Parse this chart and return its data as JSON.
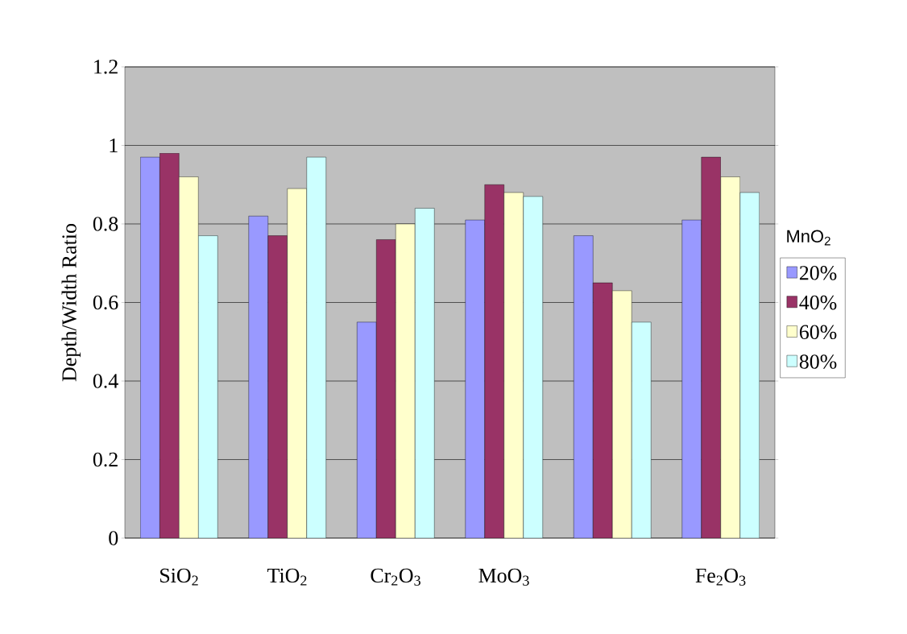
{
  "chart_data": {
    "type": "bar",
    "ylabel": "Depth/Width Ratio",
    "legend_title": "MnO$_{2}$",
    "legend": "right",
    "grid": "y",
    "categories": [
      "SiO$_{2}$",
      "TiO$_{2}$",
      "Cr$_{2}$O$_{3}$",
      "MoO$_{3}$",
      null,
      "Fe$_{2}$O$_{3}$"
    ],
    "ylim": [
      0,
      1.2
    ],
    "yticks": [
      0,
      0.2,
      0.4,
      0.6,
      0.8,
      1,
      1.2
    ],
    "series": [
      {
        "name": "20%",
        "color": "#9999ff",
        "values": [
          0.97,
          0.82,
          0.55,
          0.81,
          0.77,
          0.81
        ]
      },
      {
        "name": "40%",
        "color": "#993366",
        "values": [
          0.98,
          0.77,
          0.76,
          0.9,
          0.65,
          0.97
        ]
      },
      {
        "name": "60%",
        "color": "#ffffcc",
        "values": [
          0.92,
          0.89,
          0.8,
          0.88,
          0.63,
          0.92
        ]
      },
      {
        "name": "80%",
        "color": "#ccffff",
        "values": [
          0.77,
          0.97,
          0.84,
          0.87,
          0.55,
          0.88
        ]
      }
    ]
  }
}
